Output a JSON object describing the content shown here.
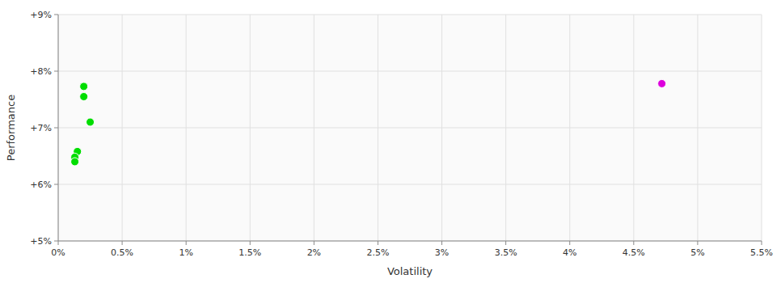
{
  "chart_data": {
    "type": "scatter",
    "xlabel": "Volatility",
    "ylabel": "Performance",
    "xlim": [
      0,
      0.055
    ],
    "ylim": [
      0.05,
      0.09
    ],
    "xticks": [
      {
        "value": 0.0,
        "label": "0%"
      },
      {
        "value": 0.005,
        "label": "0.5%"
      },
      {
        "value": 0.01,
        "label": "1%"
      },
      {
        "value": 0.015,
        "label": "1.5%"
      },
      {
        "value": 0.02,
        "label": "2%"
      },
      {
        "value": 0.025,
        "label": "2.5%"
      },
      {
        "value": 0.03,
        "label": "3%"
      },
      {
        "value": 0.035,
        "label": "3.5%"
      },
      {
        "value": 0.04,
        "label": "4%"
      },
      {
        "value": 0.045,
        "label": "4.5%"
      },
      {
        "value": 0.05,
        "label": "5%"
      },
      {
        "value": 0.055,
        "label": "5.5%"
      }
    ],
    "yticks": [
      {
        "value": 0.05,
        "label": "+5%"
      },
      {
        "value": 0.06,
        "label": "+6%"
      },
      {
        "value": 0.07,
        "label": "+7%"
      },
      {
        "value": 0.08,
        "label": "+8%"
      },
      {
        "value": 0.09,
        "label": "+9%"
      }
    ],
    "grid": true,
    "series": [
      {
        "color": "#00dd00",
        "x": [
          0.002,
          0.002,
          0.0025,
          0.0015,
          0.0013,
          0.0013
        ],
        "values": [
          0.0773,
          0.0755,
          0.071,
          0.0658,
          0.0648,
          0.064
        ]
      },
      {
        "color": "#dd00dd",
        "x": [
          0.0472
        ],
        "values": [
          0.0778
        ]
      }
    ]
  }
}
